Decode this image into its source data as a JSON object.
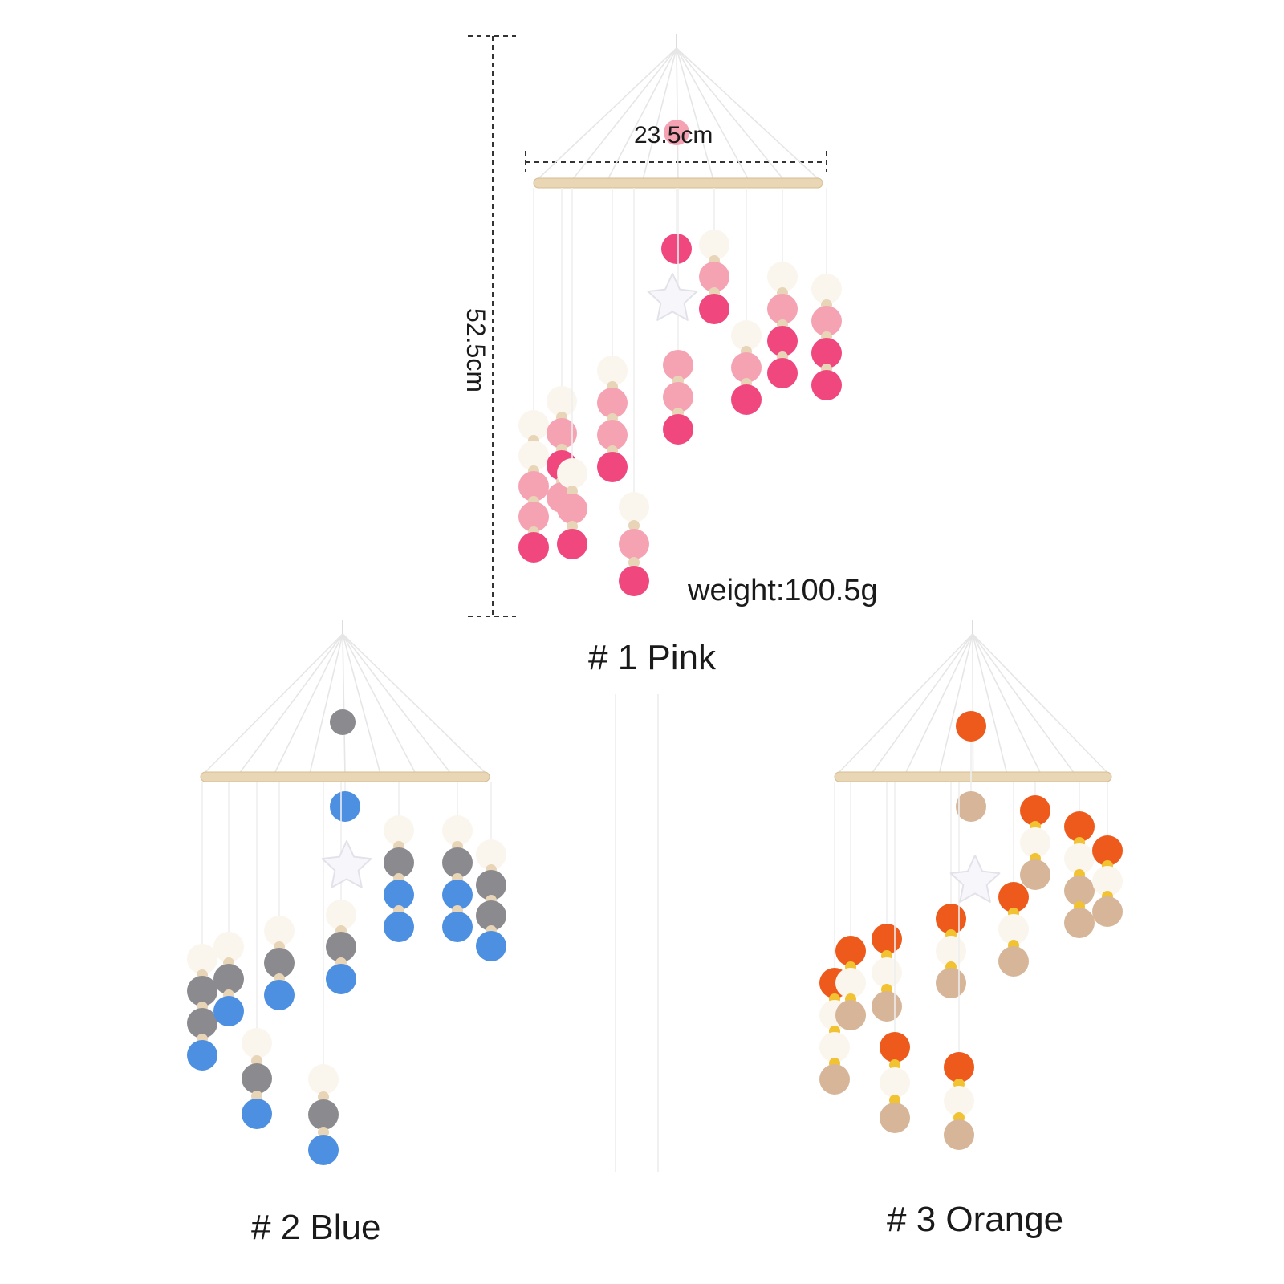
{
  "dimensions": {
    "width_label": "23.5cm",
    "height_label": "52.5cm",
    "weight_label": "weight:100.5g"
  },
  "variants": [
    {
      "name": "# 1  Pink",
      "colors": {
        "accent": "#f0477f",
        "mid": "#f5a3b3",
        "light": "#faf6ee",
        "bead": "#e8d4b6"
      }
    },
    {
      "name": "# 2 Blue",
      "colors": {
        "accent": "#4d8fe0",
        "mid": "#8b8b8f",
        "light": "#faf6ee",
        "bead": "#e8d4b6"
      }
    },
    {
      "name": "# 3 Orange",
      "colors": {
        "accent": "#ee5a1c",
        "mid": "#d7b598",
        "light": "#faf6ee",
        "bead": "#f1c232"
      }
    }
  ]
}
